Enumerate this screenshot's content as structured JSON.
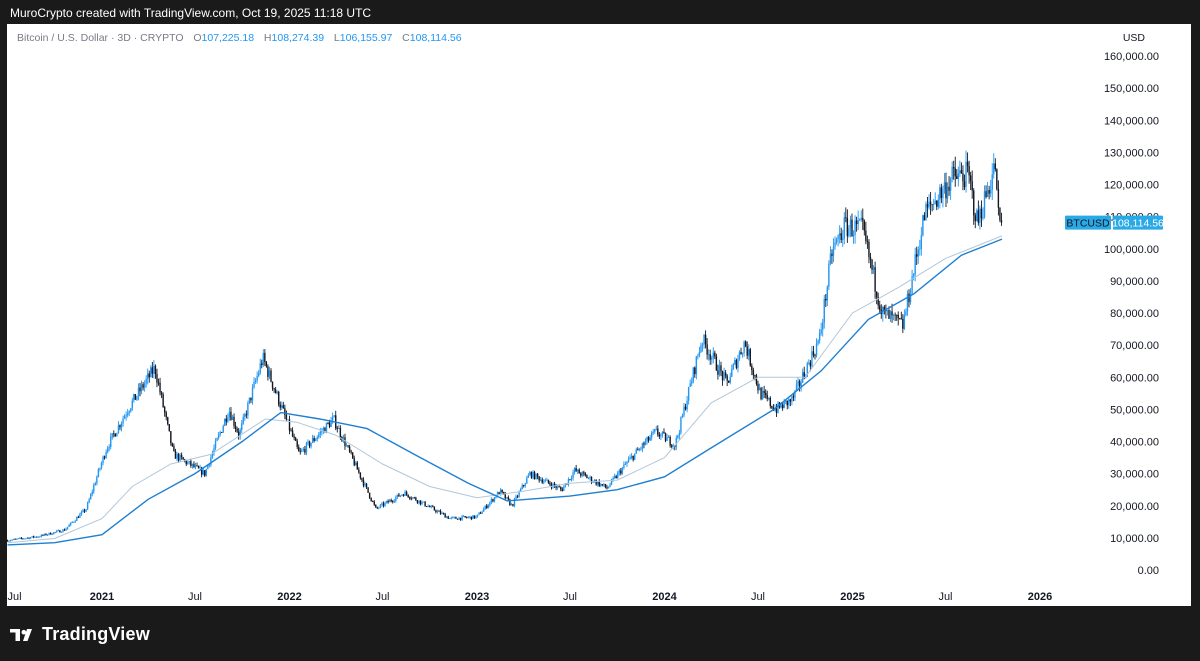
{
  "header": {
    "attribution": "MuroCrypto created with TradingView.com, Oct 19, 2025 11:18 UTC"
  },
  "legend": {
    "symbol": "Bitcoin / U.S. Dollar · 3D · CRYPTO",
    "open_label": "O",
    "open": "107,225.18",
    "high_label": "H",
    "high": "108,274.39",
    "low_label": "L",
    "low": "106,155.97",
    "close_label": "C",
    "close": "108,114.56"
  },
  "currency": "USD",
  "price_tag": {
    "symbol": "BTCUSD",
    "value": "108,114.56"
  },
  "footer": {
    "brand": "TradingView"
  },
  "colors": {
    "up": "#2196f3",
    "down": "#131722",
    "ma_fast": "#b2c7d9",
    "ma_slow": "#1f7fd1",
    "price_tag": "#29a9e6"
  },
  "chart_data": {
    "type": "candlestick",
    "y_axis": {
      "ticks": [
        0,
        10000,
        20000,
        30000,
        40000,
        50000,
        60000,
        70000,
        80000,
        90000,
        100000,
        110000,
        120000,
        130000,
        140000,
        150000,
        160000
      ],
      "tick_labels": [
        "0.00",
        "10,000.00",
        "20,000.00",
        "30,000.00",
        "40,000.00",
        "50,000.00",
        "60,000.00",
        "70,000.00",
        "80,000.00",
        "90,000.00",
        "100,000.00",
        "110,000.00",
        "120,000.00",
        "130,000.00",
        "140,000.00",
        "150,000.00",
        "160,000.00"
      ]
    },
    "x_axis": {
      "ticks": [
        {
          "date": "2020-07-01",
          "label": "Jul"
        },
        {
          "date": "2021-01-01",
          "label": "2021"
        },
        {
          "date": "2021-07-01",
          "label": "Jul"
        },
        {
          "date": "2022-01-01",
          "label": "2022"
        },
        {
          "date": "2022-07-01",
          "label": "Jul"
        },
        {
          "date": "2023-01-01",
          "label": "2023"
        },
        {
          "date": "2023-07-01",
          "label": "Jul"
        },
        {
          "date": "2024-01-01",
          "label": "2024"
        },
        {
          "date": "2024-07-01",
          "label": "Jul"
        },
        {
          "date": "2025-01-01",
          "label": "2025"
        },
        {
          "date": "2025-07-01",
          "label": "Jul"
        },
        {
          "date": "2026-01-01",
          "label": "2026"
        }
      ]
    },
    "price_path": [
      [
        "2020-07-01",
        9200
      ],
      [
        "2020-09-01",
        10500
      ],
      [
        "2020-10-20",
        12500
      ],
      [
        "2020-12-01",
        19000
      ],
      [
        "2021-01-10",
        38000
      ],
      [
        "2021-02-20",
        50000
      ],
      [
        "2021-04-14",
        63000
      ],
      [
        "2021-05-20",
        36000
      ],
      [
        "2021-07-20",
        30000
      ],
      [
        "2021-09-05",
        50000
      ],
      [
        "2021-09-25",
        42000
      ],
      [
        "2021-11-10",
        66000
      ],
      [
        "2022-01-20",
        36000
      ],
      [
        "2022-03-28",
        47000
      ],
      [
        "2022-06-18",
        19000
      ],
      [
        "2022-08-12",
        24000
      ],
      [
        "2022-11-10",
        16000
      ],
      [
        "2022-12-31",
        16500
      ],
      [
        "2023-02-15",
        24500
      ],
      [
        "2023-03-10",
        20000
      ],
      [
        "2023-04-14",
        30000
      ],
      [
        "2023-06-15",
        25000
      ],
      [
        "2023-07-10",
        31000
      ],
      [
        "2023-09-11",
        25500
      ],
      [
        "2023-10-23",
        34000
      ],
      [
        "2023-12-15",
        43000
      ],
      [
        "2024-01-22",
        39000
      ],
      [
        "2024-03-14",
        72000
      ],
      [
        "2024-05-01",
        58000
      ],
      [
        "2024-06-05",
        71000
      ],
      [
        "2024-07-05",
        55000
      ],
      [
        "2024-08-05",
        50000
      ],
      [
        "2024-09-06",
        53000
      ],
      [
        "2024-10-29",
        72000
      ],
      [
        "2024-11-22",
        99000
      ],
      [
        "2024-12-17",
        107000
      ],
      [
        "2025-01-20",
        106000
      ],
      [
        "2025-02-28",
        80000
      ],
      [
        "2025-04-09",
        76000
      ],
      [
        "2025-05-22",
        111000
      ],
      [
        "2025-07-14",
        122000
      ],
      [
        "2025-08-14",
        123000
      ],
      [
        "2025-09-01",
        108000
      ],
      [
        "2025-10-06",
        126000
      ],
      [
        "2025-10-11",
        110000
      ],
      [
        "2025-10-19",
        108114.56
      ]
    ],
    "moving_averages": [
      {
        "values": [
          [
            "2020-07-01",
            8500
          ],
          [
            "2020-10-01",
            9800
          ],
          [
            "2021-01-01",
            16000
          ],
          [
            "2021-03-01",
            26000
          ],
          [
            "2021-05-15",
            33000
          ],
          [
            "2021-08-01",
            36000
          ],
          [
            "2021-11-15",
            47000
          ],
          [
            "2022-01-15",
            46000
          ],
          [
            "2022-04-01",
            42000
          ],
          [
            "2022-07-01",
            33000
          ],
          [
            "2022-10-01",
            26000
          ],
          [
            "2023-01-01",
            22500
          ],
          [
            "2023-04-01",
            24500
          ],
          [
            "2023-07-01",
            27000
          ],
          [
            "2023-10-01",
            28000
          ],
          [
            "2024-01-01",
            35000
          ],
          [
            "2024-04-01",
            52000
          ],
          [
            "2024-07-01",
            60000
          ],
          [
            "2024-10-01",
            60000
          ],
          [
            "2025-01-01",
            80000
          ],
          [
            "2025-04-01",
            88000
          ],
          [
            "2025-07-01",
            97000
          ],
          [
            "2025-10-19",
            104000
          ]
        ]
      },
      {
        "values": [
          [
            "2020-07-01",
            7800
          ],
          [
            "2020-10-01",
            8500
          ],
          [
            "2021-01-01",
            11000
          ],
          [
            "2021-04-01",
            22000
          ],
          [
            "2021-07-01",
            30000
          ],
          [
            "2021-10-01",
            40000
          ],
          [
            "2021-12-15",
            49000
          ],
          [
            "2022-03-01",
            47000
          ],
          [
            "2022-06-01",
            44000
          ],
          [
            "2022-09-01",
            36000
          ],
          [
            "2022-12-15",
            27000
          ],
          [
            "2023-03-01",
            21500
          ],
          [
            "2023-07-01",
            23000
          ],
          [
            "2023-10-01",
            25000
          ],
          [
            "2024-01-01",
            29000
          ],
          [
            "2024-04-01",
            38000
          ],
          [
            "2024-08-01",
            50000
          ],
          [
            "2024-11-01",
            62000
          ],
          [
            "2025-02-01",
            78000
          ],
          [
            "2025-05-01",
            86000
          ],
          [
            "2025-08-01",
            98000
          ],
          [
            "2025-10-19",
            103000
          ]
        ]
      }
    ],
    "last_price": 108114.56
  }
}
